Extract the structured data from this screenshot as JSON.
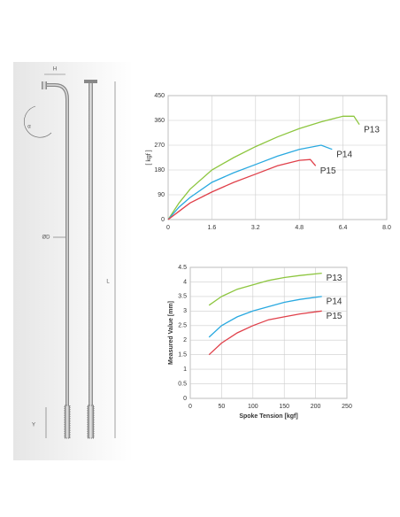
{
  "diagram": {
    "labels": [
      "H",
      "α",
      "ØD",
      "L",
      "Y"
    ]
  },
  "chart_data": [
    {
      "type": "line",
      "y_label": "[ kgf ]",
      "xlim": [
        0,
        8
      ],
      "xticks": [
        0,
        1.6,
        3.2,
        4.8,
        6.4,
        {
          "value": 8,
          "label": "8.0"
        }
      ],
      "ylim": [
        0,
        450
      ],
      "yticks": [
        0,
        90,
        180,
        270,
        360,
        450
      ],
      "grid": true,
      "series": [
        {
          "name": "P13",
          "color": "#8dc63f",
          "x": [
            0,
            0.4,
            0.8,
            1.6,
            2.4,
            3.2,
            4.0,
            4.8,
            5.6,
            6.4,
            6.8,
            7.0
          ],
          "values": [
            0,
            60,
            110,
            180,
            225,
            265,
            300,
            330,
            355,
            375,
            375,
            345
          ]
        },
        {
          "name": "P14",
          "color": "#29a9e0",
          "x": [
            0,
            0.4,
            0.8,
            1.6,
            2.4,
            3.2,
            4.0,
            4.8,
            5.6,
            6.0
          ],
          "values": [
            0,
            45,
            80,
            135,
            170,
            200,
            230,
            255,
            270,
            255
          ]
        },
        {
          "name": "P15",
          "color": "#e0404a",
          "x": [
            0,
            0.4,
            0.8,
            1.6,
            2.4,
            3.2,
            4.0,
            4.8,
            5.2,
            5.4
          ],
          "values": [
            0,
            30,
            60,
            100,
            135,
            165,
            195,
            215,
            218,
            195
          ]
        }
      ]
    },
    {
      "type": "line",
      "x_label": "Spoke Tension [kgf]",
      "y_label": "Measured Value [mm]",
      "xlim": [
        0,
        250
      ],
      "xticks": [
        0,
        50,
        100,
        150,
        200,
        250
      ],
      "ylim": [
        0,
        4.5
      ],
      "yticks": [
        0,
        0.5,
        1,
        1.5,
        2,
        2.5,
        3,
        3.5,
        4,
        4.5
      ],
      "grid": true,
      "series": [
        {
          "name": "P13",
          "color": "#8dc63f",
          "x": [
            30,
            50,
            75,
            100,
            125,
            150,
            175,
            210
          ],
          "values": [
            3.2,
            3.5,
            3.75,
            3.9,
            4.05,
            4.15,
            4.22,
            4.3
          ]
        },
        {
          "name": "P14",
          "color": "#29a9e0",
          "x": [
            30,
            50,
            75,
            100,
            125,
            150,
            175,
            210
          ],
          "values": [
            2.1,
            2.5,
            2.8,
            3.0,
            3.15,
            3.3,
            3.4,
            3.5
          ]
        },
        {
          "name": "P15",
          "color": "#e0404a",
          "x": [
            30,
            50,
            75,
            100,
            125,
            150,
            175,
            210
          ],
          "values": [
            1.5,
            1.9,
            2.25,
            2.5,
            2.7,
            2.8,
            2.9,
            3.0
          ]
        }
      ]
    }
  ]
}
